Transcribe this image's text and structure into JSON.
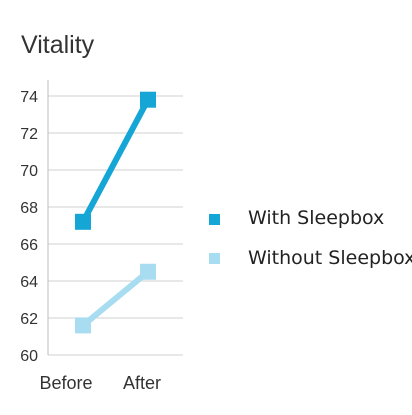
{
  "chart_data": {
    "type": "line",
    "title": "Vitality",
    "categories": [
      "Before",
      "After"
    ],
    "ylim": [
      60,
      74
    ],
    "yticks": [
      60,
      62,
      64,
      66,
      68,
      70,
      72,
      74
    ],
    "grid": true,
    "legend_position": "right",
    "series": [
      {
        "name": "With Sleepbox",
        "values": [
          67.2,
          73.8
        ],
        "color": "#15a6d6"
      },
      {
        "name": "Without Sleepbox",
        "values": [
          61.6,
          64.5
        ],
        "color": "#a8dcf0"
      }
    ]
  }
}
